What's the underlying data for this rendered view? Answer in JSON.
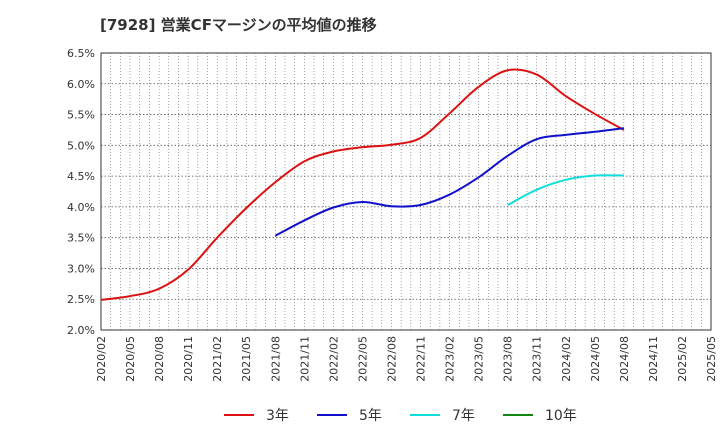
{
  "title": "[7928]  営業CFマージンの平均値の推移",
  "chart_data": {
    "type": "line",
    "title": "[7928]  営業CFマージンの平均値の推移",
    "xlabel": "",
    "ylabel": "",
    "ylim": [
      2.0,
      6.5
    ],
    "grid": true,
    "legend_position": "bottom",
    "x_ticks": [
      "2020/02",
      "2020/05",
      "2020/08",
      "2020/11",
      "2021/02",
      "2021/05",
      "2021/08",
      "2021/11",
      "2022/02",
      "2022/05",
      "2022/08",
      "2022/11",
      "2023/02",
      "2023/05",
      "2023/08",
      "2023/11",
      "2024/02",
      "2024/05",
      "2024/08",
      "2024/11",
      "2025/02",
      "2025/05"
    ],
    "y_ticks": [
      "2.0%",
      "2.5%",
      "3.0%",
      "3.5%",
      "4.0%",
      "4.5%",
      "5.0%",
      "5.5%",
      "6.0%",
      "6.5%"
    ],
    "series": [
      {
        "name": "3年",
        "color": "#dd1111",
        "x": [
          "2020/02",
          "2020/05",
          "2020/08",
          "2020/11",
          "2021/02",
          "2021/05",
          "2021/08",
          "2021/11",
          "2022/02",
          "2022/05",
          "2022/08",
          "2022/11",
          "2023/02",
          "2023/05",
          "2023/08",
          "2023/11",
          "2024/02",
          "2024/05",
          "2024/08"
        ],
        "values": [
          2.49,
          2.55,
          2.67,
          2.98,
          3.5,
          3.98,
          4.4,
          4.74,
          4.9,
          4.97,
          5.01,
          5.12,
          5.52,
          5.95,
          6.22,
          6.15,
          5.8,
          5.51,
          5.25
        ]
      },
      {
        "name": "5年",
        "color": "#1111cc",
        "x": [
          "2021/08",
          "2021/11",
          "2022/02",
          "2022/05",
          "2022/08",
          "2022/11",
          "2023/02",
          "2023/05",
          "2023/08",
          "2023/11",
          "2024/02",
          "2024/05",
          "2024/08"
        ],
        "values": [
          3.53,
          3.78,
          3.99,
          4.08,
          4.01,
          4.03,
          4.2,
          4.48,
          4.83,
          5.1,
          5.17,
          5.22,
          5.28
        ]
      },
      {
        "name": "7年",
        "color": "#11dddd",
        "x": [
          "2023/08",
          "2023/11",
          "2024/02",
          "2024/05",
          "2024/08"
        ],
        "values": [
          4.03,
          4.28,
          4.44,
          4.51,
          4.51
        ]
      },
      {
        "name": "10年",
        "color": "#118811",
        "x": [],
        "values": []
      }
    ]
  }
}
